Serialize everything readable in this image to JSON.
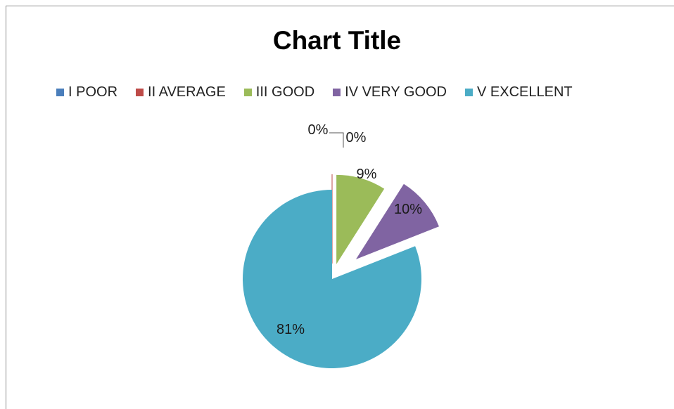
{
  "chart_data": {
    "type": "pie",
    "title": "Chart Title",
    "legend_position": "top",
    "categories": [
      "I POOR",
      "II AVERAGE",
      "III GOOD",
      "IV VERY GOOD",
      "V EXCELLENT"
    ],
    "values": [
      0,
      0,
      9,
      10,
      81
    ],
    "labels": [
      "0%",
      "0%",
      "9%",
      "10%",
      "81%"
    ],
    "colors": [
      "#4a7ebb",
      "#be4b48",
      "#9bbb59",
      "#8064a2",
      "#4bacc6"
    ],
    "exploded": true
  }
}
